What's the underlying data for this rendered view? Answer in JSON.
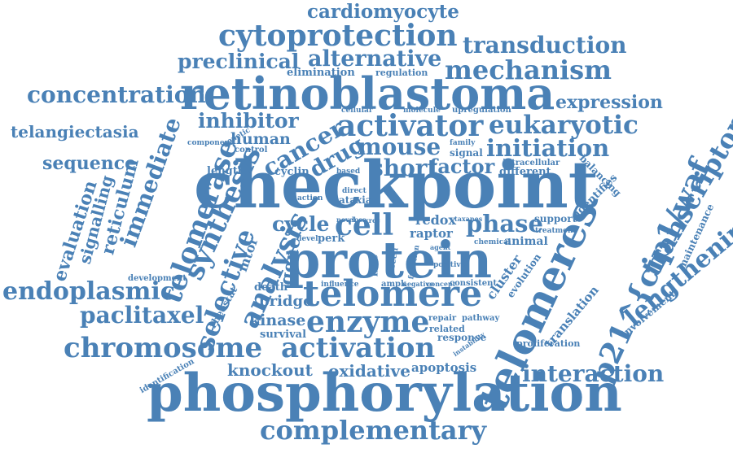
{
  "text_color": "#4a81b6",
  "background": "#ffffff",
  "words": [
    {
      "text": "cardiomyocyte"
    },
    {
      "text": "cytoprotection"
    },
    {
      "text": "transduction"
    },
    {
      "text": "preclinical"
    },
    {
      "text": "alternative"
    },
    {
      "text": "mechanism"
    },
    {
      "text": "elimination"
    },
    {
      "text": "regulation"
    },
    {
      "text": "retinoblastoma"
    },
    {
      "text": "concentration"
    },
    {
      "text": "expression"
    },
    {
      "text": "inhibitor"
    },
    {
      "text": "activator"
    },
    {
      "text": "eukaryotic"
    },
    {
      "text": "cellular"
    },
    {
      "text": "molecule"
    },
    {
      "text": "upregulation"
    },
    {
      "text": "telangiectasia"
    },
    {
      "text": "human"
    },
    {
      "text": "mouse"
    },
    {
      "text": "initiation"
    },
    {
      "text": "cancer"
    },
    {
      "text": "component"
    },
    {
      "text": "genetic"
    },
    {
      "text": "control"
    },
    {
      "text": "family"
    },
    {
      "text": "signal"
    },
    {
      "text": "intracellular"
    },
    {
      "text": "sequence"
    },
    {
      "text": "drug"
    },
    {
      "text": "short"
    },
    {
      "text": "factor"
    },
    {
      "text": "different"
    },
    {
      "text": "length"
    },
    {
      "text": "cyclin"
    },
    {
      "text": "based"
    },
    {
      "text": "checkpoint"
    },
    {
      "text": "action"
    },
    {
      "text": "direct"
    },
    {
      "text": "ataxia"
    },
    {
      "text": "identifies"
    },
    {
      "text": "balancing"
    },
    {
      "text": "transcriptome"
    },
    {
      "text": "telomerase"
    },
    {
      "text": "synthesis"
    },
    {
      "text": "immediate"
    },
    {
      "text": "reticulum"
    },
    {
      "text": "signalling"
    },
    {
      "text": "evaluation"
    },
    {
      "text": "cycle"
    },
    {
      "text": "cell"
    },
    {
      "text": "phase"
    },
    {
      "text": "support"
    },
    {
      "text": "treatment"
    },
    {
      "text": "maintenance"
    },
    {
      "text": "redox"
    },
    {
      "text": "raptor"
    },
    {
      "text": "novel"
    },
    {
      "text": "loss"
    },
    {
      "text": "xrcc"
    },
    {
      "text": "level"
    },
    {
      "text": "perk"
    },
    {
      "text": "taxanes"
    },
    {
      "text": "chemical"
    },
    {
      "text": "animal"
    },
    {
      "text": "development"
    },
    {
      "text": "mtor"
    },
    {
      "text": "gene"
    },
    {
      "text": "protein"
    },
    {
      "text": "line"
    },
    {
      "text": "screen"
    },
    {
      "text": "function"
    },
    {
      "text": "positive"
    },
    {
      "text": "agent"
    },
    {
      "text": "cluster"
    },
    {
      "text": "evolution"
    },
    {
      "text": "lengthening"
    },
    {
      "text": "p21^{cip1/waf"
    },
    {
      "text": "endoplasmic"
    },
    {
      "text": "analysis"
    },
    {
      "text": "selective"
    },
    {
      "text": "rheostat"
    },
    {
      "text": "death"
    },
    {
      "text": "influence"
    },
    {
      "text": "ampk"
    },
    {
      "text": "negative"
    },
    {
      "text": "concept"
    },
    {
      "text": "consistent"
    },
    {
      "text": "telomere"
    },
    {
      "text": "paclitaxel"
    },
    {
      "text": "bridge"
    },
    {
      "text": "kinase"
    },
    {
      "text": "enzyme"
    },
    {
      "text": "repair"
    },
    {
      "text": "pathway"
    },
    {
      "text": "related"
    },
    {
      "text": "response"
    },
    {
      "text": "survival"
    },
    {
      "text": "telomeres"
    },
    {
      "text": "translation"
    },
    {
      "text": "proliferation"
    },
    {
      "text": "involvement"
    },
    {
      "text": "instability"
    },
    {
      "text": "chromosome"
    },
    {
      "text": "activation"
    },
    {
      "text": "knockout"
    },
    {
      "text": "oxidative"
    },
    {
      "text": "apoptosis"
    },
    {
      "text": "interaction"
    },
    {
      "text": "identification"
    },
    {
      "text": "phosphorylation"
    },
    {
      "text": "complementary"
    }
  ]
}
